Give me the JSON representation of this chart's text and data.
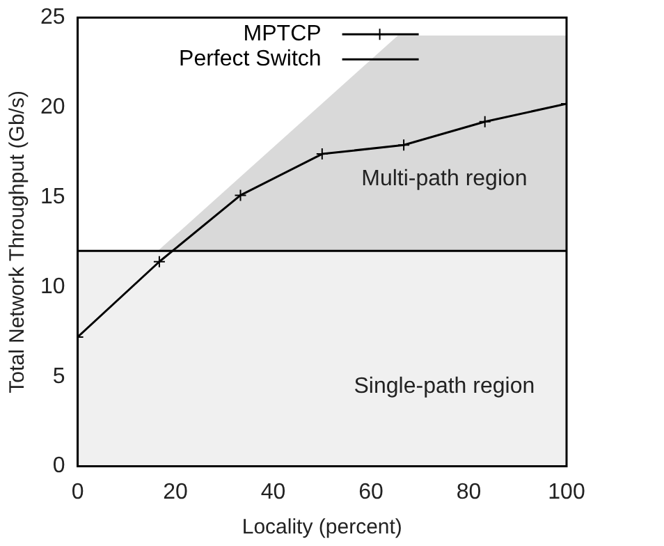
{
  "chart_data": {
    "type": "line",
    "xlabel": "Locality (percent)",
    "ylabel": "Total Network Throughput (Gb/s)",
    "xlim": [
      0,
      100
    ],
    "xticks": [
      0,
      20,
      40,
      60,
      80,
      100
    ],
    "ylim": [
      0,
      25
    ],
    "yticks": [
      0,
      5,
      10,
      15,
      20,
      25
    ],
    "grid": false,
    "legend": "top",
    "series": [
      {
        "type": "area",
        "color": "#d9d9d9",
        "x": [
          16.4,
          65.5,
          100
        ],
        "values": [
          12,
          24,
          24
        ]
      },
      {
        "name": "MPTCP",
        "color": "#000000",
        "marker": "cross",
        "x": [
          0,
          16.7,
          33.3,
          50,
          66.7,
          83.3,
          100
        ],
        "values": [
          7.2,
          11.4,
          15.1,
          17.4,
          17.9,
          19.2,
          20.2
        ]
      },
      {
        "name": "Perfect Switch",
        "color": "#000000",
        "marker": "none",
        "x": [
          0,
          100
        ],
        "values": [
          12,
          12
        ]
      }
    ],
    "bands": [
      {
        "axis": "y",
        "from": 0,
        "to": 12,
        "label": "Single-path region",
        "color": "#f0f0f0"
      }
    ],
    "annotations": [
      "Multi-path region"
    ]
  }
}
